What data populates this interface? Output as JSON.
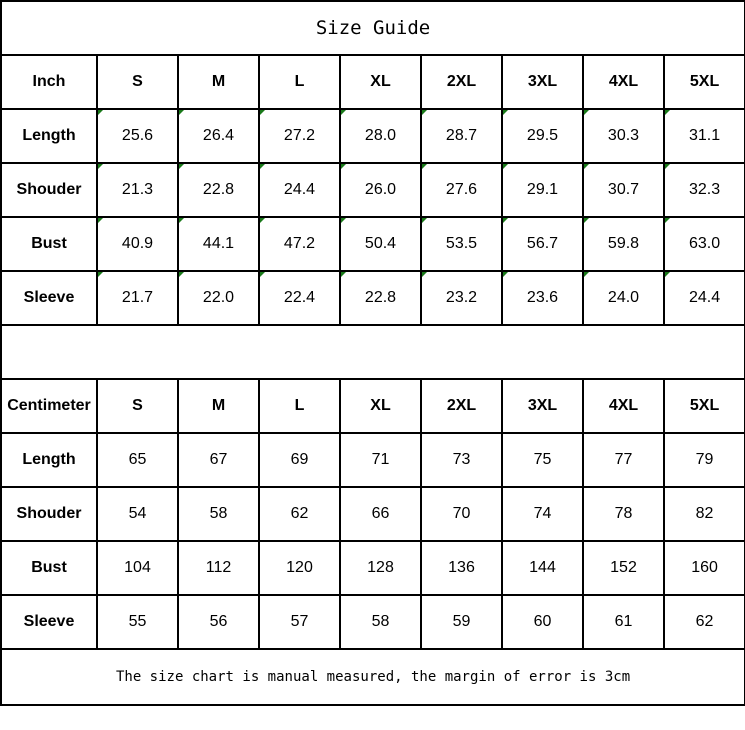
{
  "title": "Size Guide",
  "inch_table": {
    "unit_label": "Inch",
    "sizes": [
      "S",
      "M",
      "L",
      "XL",
      "2XL",
      "3XL",
      "4XL",
      "5XL"
    ],
    "rows": [
      {
        "label": "Length",
        "values": [
          "25.6",
          "26.4",
          "27.2",
          "28.0",
          "28.7",
          "29.5",
          "30.3",
          "31.1"
        ]
      },
      {
        "label": "Shouder",
        "values": [
          "21.3",
          "22.8",
          "24.4",
          "26.0",
          "27.6",
          "29.1",
          "30.7",
          "32.3"
        ]
      },
      {
        "label": "Bust",
        "values": [
          "40.9",
          "44.1",
          "47.2",
          "50.4",
          "53.5",
          "56.7",
          "59.8",
          "63.0"
        ]
      },
      {
        "label": "Sleeve",
        "values": [
          "21.7",
          "22.0",
          "22.4",
          "22.8",
          "23.2",
          "23.6",
          "24.0",
          "24.4"
        ]
      }
    ]
  },
  "cm_table": {
    "unit_label": "Centimeter",
    "sizes": [
      "S",
      "M",
      "L",
      "XL",
      "2XL",
      "3XL",
      "4XL",
      "5XL"
    ],
    "rows": [
      {
        "label": "Length",
        "values": [
          "65",
          "67",
          "69",
          "71",
          "73",
          "75",
          "77",
          "79"
        ]
      },
      {
        "label": "Shouder",
        "values": [
          "54",
          "58",
          "62",
          "66",
          "70",
          "74",
          "78",
          "82"
        ]
      },
      {
        "label": "Bust",
        "values": [
          "104",
          "112",
          "120",
          "128",
          "136",
          "144",
          "152",
          "160"
        ]
      },
      {
        "label": "Sleeve",
        "values": [
          "55",
          "56",
          "57",
          "58",
          "59",
          "60",
          "61",
          "62"
        ]
      }
    ]
  },
  "footer": "The size chart is manual measured, the margin of error is 3cm",
  "colors": {
    "cell_marker": "#1a7a1a",
    "border": "#000000"
  }
}
